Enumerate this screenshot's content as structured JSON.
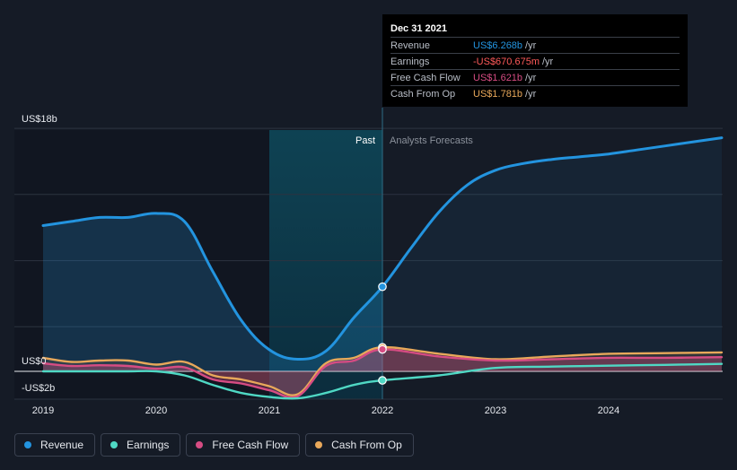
{
  "colors": {
    "background": "#151b26",
    "revenue": "#2394df",
    "earnings": "#4fd8c4",
    "free_cash_flow": "#d64c83",
    "cash_from_op": "#e8a85a",
    "negative_value": "#ff5a5a"
  },
  "tooltip": {
    "date": "Dec 31 2021",
    "rows": [
      {
        "label": "Revenue",
        "value": "US$6.268b",
        "unit": "/yr",
        "color": "#2394df"
      },
      {
        "label": "Earnings",
        "value": "-US$670.675m",
        "unit": "/yr",
        "color": "#ff5a5a"
      },
      {
        "label": "Free Cash Flow",
        "value": "US$1.621b",
        "unit": "/yr",
        "color": "#d64c83"
      },
      {
        "label": "Cash From Op",
        "value": "US$1.781b",
        "unit": "/yr",
        "color": "#e8a85a"
      }
    ]
  },
  "legend": [
    {
      "label": "Revenue",
      "color": "#2394df"
    },
    {
      "label": "Earnings",
      "color": "#4fd8c4"
    },
    {
      "label": "Free Cash Flow",
      "color": "#d64c83"
    },
    {
      "label": "Cash From Op",
      "color": "#e8a85a"
    }
  ],
  "chart_data": {
    "type": "line",
    "x_tick_labels": [
      "2019",
      "2020",
      "2021",
      "2022",
      "2023",
      "2024"
    ],
    "y_tick_labels": [
      "US$18b",
      "US$0",
      "-US$2b"
    ],
    "ylim": [
      -2,
      18
    ],
    "region_labels": {
      "past": "Past",
      "forecast": "Analysts Forecasts"
    },
    "highlight_x": 2022.0,
    "past_end_x": 2022.0,
    "shaded_range": [
      2021.0,
      2022.0
    ],
    "units": "US$ billions",
    "series": [
      {
        "name": "Revenue",
        "key": "revenue",
        "x": [
          2019.0,
          2019.25,
          2019.5,
          2019.75,
          2020.0,
          2020.25,
          2020.5,
          2020.75,
          2021.0,
          2021.25,
          2021.5,
          2021.75,
          2022.0,
          2022.25,
          2022.5,
          2022.75,
          2023.0,
          2023.25,
          2023.5,
          2023.75,
          2024.0,
          2024.25,
          2024.5,
          2024.75,
          2025.0
        ],
        "y": [
          10.8,
          11.1,
          11.4,
          11.4,
          11.7,
          11.1,
          7.4,
          3.8,
          1.6,
          0.9,
          1.5,
          4.0,
          6.268,
          9.1,
          11.8,
          13.8,
          14.9,
          15.4,
          15.7,
          15.9,
          16.1,
          16.4,
          16.7,
          17.0,
          17.3
        ]
      },
      {
        "name": "Earnings",
        "key": "earnings",
        "x": [
          2019.0,
          2019.25,
          2019.5,
          2019.75,
          2020.0,
          2020.25,
          2020.5,
          2020.75,
          2021.0,
          2021.25,
          2021.5,
          2021.75,
          2022.0,
          2022.5,
          2023.0,
          2023.5,
          2024.0,
          2024.5,
          2025.0
        ],
        "y": [
          0.0,
          0.0,
          0.0,
          0.0,
          0.0,
          -0.3,
          -1.0,
          -1.6,
          -1.9,
          -2.0,
          -1.6,
          -1.0,
          -0.671,
          -0.3,
          0.25,
          0.35,
          0.42,
          0.48,
          0.55
        ]
      },
      {
        "name": "Free Cash Flow",
        "key": "free_cash_flow",
        "x": [
          2019.0,
          2019.25,
          2019.5,
          2019.75,
          2020.0,
          2020.25,
          2020.5,
          2020.75,
          2021.0,
          2021.25,
          2021.5,
          2021.75,
          2022.0,
          2022.5,
          2023.0,
          2023.5,
          2024.0,
          2024.5,
          2025.0
        ],
        "y": [
          0.6,
          0.4,
          0.45,
          0.4,
          0.2,
          0.3,
          -0.6,
          -0.9,
          -1.4,
          -1.85,
          0.4,
          0.8,
          1.621,
          1.1,
          0.8,
          0.9,
          1.0,
          1.0,
          1.05
        ]
      },
      {
        "name": "Cash From Op",
        "key": "cash_from_op",
        "x": [
          2019.0,
          2019.25,
          2019.5,
          2019.75,
          2020.0,
          2020.25,
          2020.5,
          2020.75,
          2021.0,
          2021.25,
          2021.5,
          2021.75,
          2022.0,
          2022.5,
          2023.0,
          2023.5,
          2024.0,
          2024.5,
          2025.0
        ],
        "y": [
          1.0,
          0.7,
          0.8,
          0.8,
          0.5,
          0.7,
          -0.3,
          -0.6,
          -1.1,
          -1.7,
          0.6,
          1.0,
          1.781,
          1.3,
          0.9,
          1.1,
          1.3,
          1.35,
          1.4
        ]
      }
    ]
  }
}
